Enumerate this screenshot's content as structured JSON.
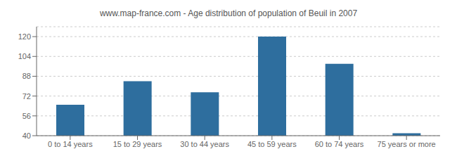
{
  "chart_data": {
    "type": "bar",
    "title": "www.map-france.com - Age distribution of population of Beuil in 2007",
    "categories": [
      "0 to 14 years",
      "15 to 29 years",
      "30 to 44 years",
      "45 to 59 years",
      "60 to 74 years",
      "75 years or more"
    ],
    "values": [
      65,
      84,
      75,
      120,
      98,
      42
    ],
    "color": "#2e6e9e",
    "ylim": [
      40,
      128
    ],
    "yticks": [
      40,
      56,
      72,
      88,
      104,
      120
    ],
    "grid": true
  }
}
